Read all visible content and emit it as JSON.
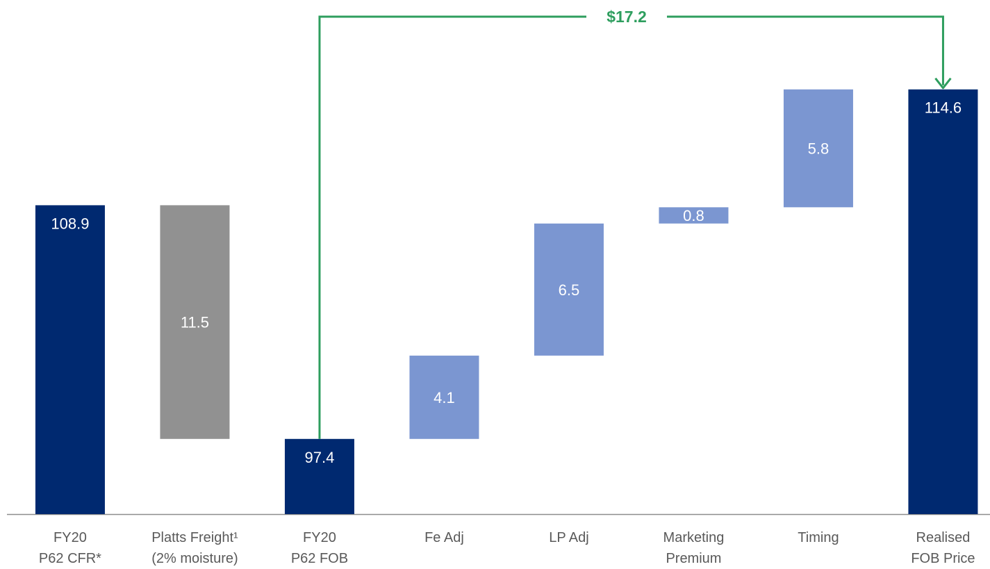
{
  "chart_data": {
    "type": "waterfall",
    "categories": [
      [
        "FY20",
        "P62 CFR*"
      ],
      [
        "Platts Freight¹",
        "(2% moisture)"
      ],
      [
        "FY20",
        "P62 FOB"
      ],
      [
        "Fe Adj"
      ],
      [
        "LP Adj"
      ],
      [
        "Marketing",
        "Premium"
      ],
      [
        "Timing"
      ],
      [
        "Realised",
        "FOB Price"
      ]
    ],
    "values": [
      108.9,
      11.5,
      97.4,
      4.1,
      6.5,
      0.8,
      5.8,
      114.6
    ],
    "measure": [
      "total",
      "decrease",
      "total",
      "increase",
      "increase",
      "increase",
      "increase",
      "total"
    ],
    "colors": {
      "total": "#002970",
      "decrease": "#919191",
      "increase": "#7b96d1"
    },
    "ylim": [
      93.7,
      119
    ],
    "annotation": {
      "text": "$17.2",
      "color": "#2e9e5e"
    }
  }
}
